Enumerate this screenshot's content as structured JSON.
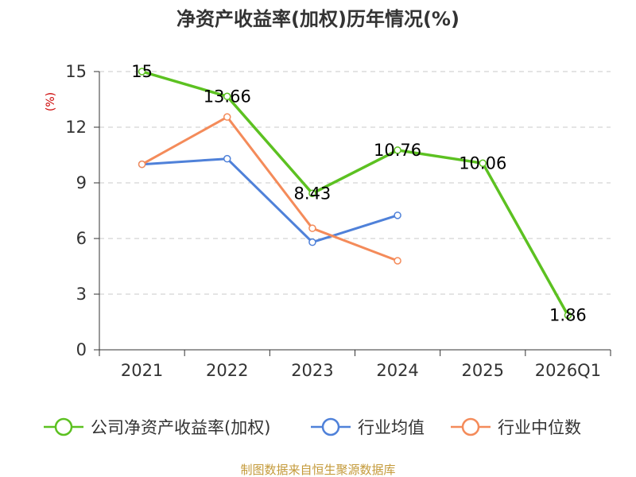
{
  "chart_data": {
    "type": "line",
    "title": "净资产收益率(加权)历年情况(%)",
    "ylabel": "(%)",
    "ylabel_color": "#cc0000",
    "categories": [
      "2021",
      "2022",
      "2023",
      "2024",
      "2025",
      "2026Q1"
    ],
    "ylim": [
      0,
      15
    ],
    "yticks": [
      0,
      3,
      6,
      9,
      12,
      15
    ],
    "grid": "horizontal-dashed",
    "series": [
      {
        "name": "公司净资产收益率(加权)",
        "color": "#5cc121",
        "values": [
          15,
          13.66,
          8.43,
          10.76,
          10.06,
          1.86
        ],
        "labels": [
          "15",
          "13.66",
          "8.43",
          "10.76",
          "10.06",
          "1.86"
        ]
      },
      {
        "name": "行业均值",
        "color": "#4f81d9",
        "values": [
          10.0,
          10.3,
          5.8,
          7.25,
          null,
          null
        ]
      },
      {
        "name": "行业中位数",
        "color": "#f48b5a",
        "values": [
          10.0,
          12.55,
          6.55,
          4.8,
          null,
          null
        ]
      }
    ]
  },
  "footer": {
    "source": "制图数据来自恒生聚源数据库",
    "color": "#c49a3a"
  }
}
